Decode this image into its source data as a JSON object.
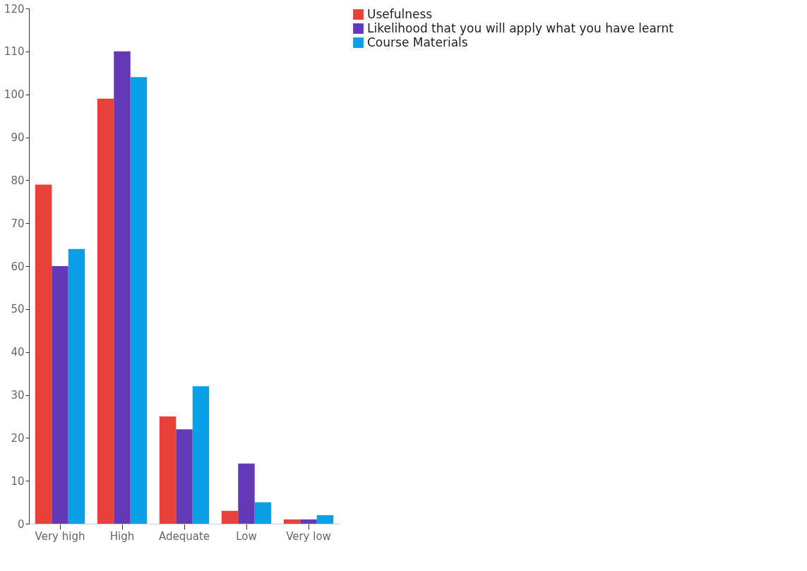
{
  "chart_data": {
    "type": "bar",
    "categories": [
      "Very high",
      "High",
      "Adequate",
      "Low",
      "Very low"
    ],
    "series": [
      {
        "name": "Usefulness",
        "color": "#e8413a",
        "values": [
          79,
          99,
          25,
          3,
          1
        ]
      },
      {
        "name": "Likelihood that you will apply what you have learnt",
        "color": "#6439b5",
        "values": [
          60,
          110,
          22,
          14,
          1
        ]
      },
      {
        "name": "Course Materials",
        "color": "#0a9fe6",
        "values": [
          64,
          104,
          32,
          5,
          2
        ]
      }
    ],
    "ylim": [
      0,
      120
    ],
    "yticks": [
      0,
      10,
      20,
      30,
      40,
      50,
      60,
      70,
      80,
      90,
      100,
      110,
      120
    ],
    "grid": false,
    "legend": "right"
  }
}
